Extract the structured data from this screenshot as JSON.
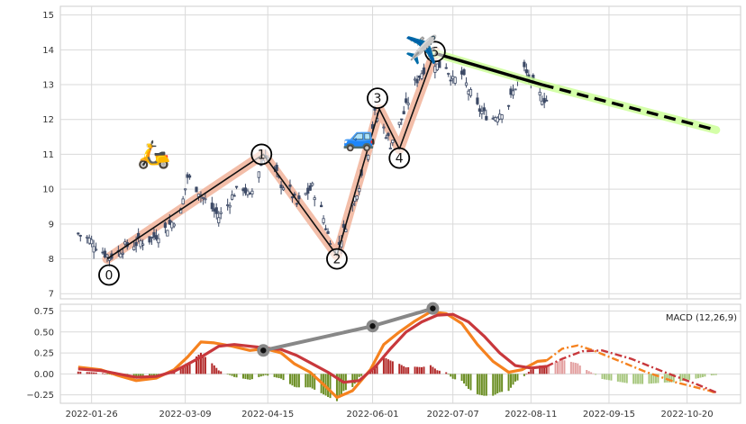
{
  "chart_data": [
    {
      "type": "candlestick",
      "panel": "price",
      "ylim": [
        6.85,
        15.25
      ],
      "yticks": [
        "7",
        "8",
        "9",
        "10",
        "11",
        "12",
        "13",
        "14",
        "15"
      ],
      "grid": true,
      "candle_color": "#3d4a66",
      "prices": [
        [
          "2022-01-20",
          8.72
        ],
        [
          "2022-01-24",
          8.6
        ],
        [
          "2022-01-27",
          8.45
        ],
        [
          "2022-01-31",
          8.2
        ],
        [
          "2022-02-03",
          8.05
        ],
        [
          "2022-02-07",
          8.2
        ],
        [
          "2022-02-10",
          8.35
        ],
        [
          "2022-02-14",
          8.42
        ],
        [
          "2022-02-17",
          8.5
        ],
        [
          "2022-02-21",
          8.55
        ],
        [
          "2022-02-24",
          8.68
        ],
        [
          "2022-02-28",
          8.85
        ],
        [
          "2022-03-03",
          9.05
        ],
        [
          "2022-03-07",
          9.35
        ],
        [
          "2022-03-10",
          10.35
        ],
        [
          "2022-03-14",
          10.05
        ],
        [
          "2022-03-17",
          9.75
        ],
        [
          "2022-03-21",
          9.45
        ],
        [
          "2022-03-24",
          9.2
        ],
        [
          "2022-03-28",
          9.55
        ],
        [
          "2022-03-31",
          9.9
        ],
        [
          "2022-04-04",
          10.05
        ],
        [
          "2022-04-07",
          9.75
        ],
        [
          "2022-04-11",
          10.55
        ],
        [
          "2022-04-14",
          11.0
        ],
        [
          "2022-04-18",
          10.55
        ],
        [
          "2022-04-21",
          10.15
        ],
        [
          "2022-04-25",
          9.95
        ],
        [
          "2022-04-28",
          9.55
        ],
        [
          "2022-05-02",
          9.85
        ],
        [
          "2022-05-05",
          10.05
        ],
        [
          "2022-05-09",
          9.4
        ],
        [
          "2022-05-12",
          8.7
        ],
        [
          "2022-05-16",
          8.25
        ],
        [
          "2022-05-19",
          8.8
        ],
        [
          "2022-05-23",
          9.55
        ],
        [
          "2022-05-26",
          10.15
        ],
        [
          "2022-05-30",
          11.1
        ],
        [
          "2022-06-02",
          12.15
        ],
        [
          "2022-06-06",
          11.75
        ],
        [
          "2022-06-09",
          11.3
        ],
        [
          "2022-06-13",
          11.85
        ],
        [
          "2022-06-16",
          12.35
        ],
        [
          "2022-06-20",
          13.05
        ],
        [
          "2022-06-23",
          13.35
        ],
        [
          "2022-06-27",
          13.8
        ],
        [
          "2022-06-30",
          13.55
        ],
        [
          "2022-07-04",
          13.55
        ],
        [
          "2022-07-07",
          13.1
        ],
        [
          "2022-07-11",
          13.3
        ],
        [
          "2022-07-14",
          12.85
        ],
        [
          "2022-07-18",
          12.35
        ],
        [
          "2022-07-21",
          12.15
        ],
        [
          "2022-07-25",
          12.05
        ],
        [
          "2022-07-28",
          12.2
        ],
        [
          "2022-08-01",
          12.45
        ],
        [
          "2022-08-04",
          12.95
        ],
        [
          "2022-08-08",
          13.45
        ],
        [
          "2022-08-11",
          13.05
        ],
        [
          "2022-08-15",
          12.7
        ],
        [
          "2022-08-18",
          12.55
        ]
      ],
      "elliott_wave": {
        "labels": [
          "0",
          "1",
          "2",
          "3",
          "4",
          "5"
        ],
        "points": [
          [
            "2022-02-02",
            8.0
          ],
          [
            "2022-04-13",
            11.0
          ],
          [
            "2022-05-16",
            8.1
          ],
          [
            "2022-06-04",
            12.3
          ],
          [
            "2022-06-13",
            11.15
          ],
          [
            "2022-06-29",
            13.95
          ]
        ]
      },
      "projection": [
        [
          "2022-06-29",
          13.9
        ],
        [
          "2022-08-16",
          13.0
        ],
        [
          "2022-11-02",
          11.7
        ]
      ],
      "icons": [
        {
          "name": "scooter",
          "emoji": "🛵",
          "date": "2022-02-23",
          "y": 11.0
        },
        {
          "name": "car",
          "emoji": "🚙",
          "date": "2022-05-26",
          "y": 11.5
        },
        {
          "name": "airplane",
          "emoji": "✈️",
          "date": "2022-06-23",
          "y": 14.0
        }
      ]
    },
    {
      "type": "bar+line",
      "panel": "macd",
      "label": "MACD (12,26,9)",
      "ylim": [
        -0.35,
        0.83
      ],
      "yticks": [
        "−0.25",
        "0.00",
        "0.25",
        "0.50",
        "0.75"
      ],
      "x_ticks": [
        "2022-01-26",
        "2022-03-09",
        "2022-04-15",
        "2022-06-01",
        "2022-07-07",
        "2022-08-11",
        "2022-09-15",
        "2022-10-20"
      ],
      "colors": {
        "macd": "#f5821f",
        "signal": "#c8383c",
        "hist_pos": "#b22a2a",
        "hist_neg": "#6b8e23",
        "hist_future_pos": "#e3a0a0",
        "hist_future_neg": "#a7c77e",
        "divergence": "#888888",
        "wave_fill": "#f2b7a0",
        "projection_glow": "#ccff99"
      },
      "macd": [
        [
          "2022-01-20",
          0.08
        ],
        [
          "2022-01-30",
          0.05
        ],
        [
          "2022-02-07",
          -0.02
        ],
        [
          "2022-02-15",
          -0.08
        ],
        [
          "2022-02-24",
          -0.05
        ],
        [
          "2022-03-04",
          0.05
        ],
        [
          "2022-03-10",
          0.2
        ],
        [
          "2022-03-16",
          0.38
        ],
        [
          "2022-03-22",
          0.37
        ],
        [
          "2022-03-30",
          0.33
        ],
        [
          "2022-04-07",
          0.28
        ],
        [
          "2022-04-14",
          0.3
        ],
        [
          "2022-04-21",
          0.25
        ],
        [
          "2022-04-27",
          0.12
        ],
        [
          "2022-05-04",
          0.02
        ],
        [
          "2022-05-11",
          -0.15
        ],
        [
          "2022-05-16",
          -0.28
        ],
        [
          "2022-05-23",
          -0.2
        ],
        [
          "2022-05-31",
          0.05
        ],
        [
          "2022-06-06",
          0.35
        ],
        [
          "2022-06-13",
          0.5
        ],
        [
          "2022-06-20",
          0.63
        ],
        [
          "2022-06-27",
          0.74
        ],
        [
          "2022-07-04",
          0.72
        ],
        [
          "2022-07-11",
          0.6
        ],
        [
          "2022-07-18",
          0.35
        ],
        [
          "2022-07-25",
          0.15
        ],
        [
          "2022-08-01",
          0.02
        ],
        [
          "2022-08-07",
          0.05
        ],
        [
          "2022-08-14",
          0.15
        ],
        [
          "2022-08-18",
          0.16
        ]
      ],
      "signal": [
        [
          "2022-01-20",
          0.06
        ],
        [
          "2022-01-30",
          0.04
        ],
        [
          "2022-02-07",
          0.0
        ],
        [
          "2022-02-15",
          -0.04
        ],
        [
          "2022-02-24",
          -0.03
        ],
        [
          "2022-03-04",
          0.03
        ],
        [
          "2022-03-16",
          0.2
        ],
        [
          "2022-03-24",
          0.33
        ],
        [
          "2022-03-31",
          0.35
        ],
        [
          "2022-04-07",
          0.33
        ],
        [
          "2022-04-14",
          0.31
        ],
        [
          "2022-04-21",
          0.29
        ],
        [
          "2022-04-28",
          0.22
        ],
        [
          "2022-05-05",
          0.12
        ],
        [
          "2022-05-12",
          0.02
        ],
        [
          "2022-05-19",
          -0.1
        ],
        [
          "2022-05-26",
          -0.08
        ],
        [
          "2022-06-02",
          0.08
        ],
        [
          "2022-06-09",
          0.3
        ],
        [
          "2022-06-16",
          0.5
        ],
        [
          "2022-06-23",
          0.62
        ],
        [
          "2022-06-30",
          0.7
        ],
        [
          "2022-07-07",
          0.71
        ],
        [
          "2022-07-14",
          0.62
        ],
        [
          "2022-07-21",
          0.45
        ],
        [
          "2022-07-28",
          0.25
        ],
        [
          "2022-08-04",
          0.1
        ],
        [
          "2022-08-11",
          0.07
        ],
        [
          "2022-08-18",
          0.09
        ]
      ],
      "macd_projection": [
        [
          "2022-08-18",
          0.16
        ],
        [
          "2022-08-25",
          0.3
        ],
        [
          "2022-09-01",
          0.34
        ],
        [
          "2022-09-08",
          0.28
        ],
        [
          "2022-09-20",
          0.15
        ],
        [
          "2022-10-01",
          0.03
        ],
        [
          "2022-10-15",
          -0.1
        ],
        [
          "2022-10-30",
          -0.2
        ],
        [
          "2022-11-02",
          -0.23
        ]
      ],
      "signal_projection": [
        [
          "2022-08-18",
          0.09
        ],
        [
          "2022-08-25",
          0.18
        ],
        [
          "2022-09-03",
          0.27
        ],
        [
          "2022-09-12",
          0.28
        ],
        [
          "2022-09-25",
          0.18
        ],
        [
          "2022-10-10",
          0.02
        ],
        [
          "2022-10-25",
          -0.13
        ],
        [
          "2022-11-02",
          -0.22
        ]
      ],
      "divergence": [
        [
          "2022-04-13",
          0.28
        ],
        [
          "2022-06-01",
          0.57
        ],
        [
          "2022-06-28",
          0.78
        ]
      ]
    }
  ]
}
